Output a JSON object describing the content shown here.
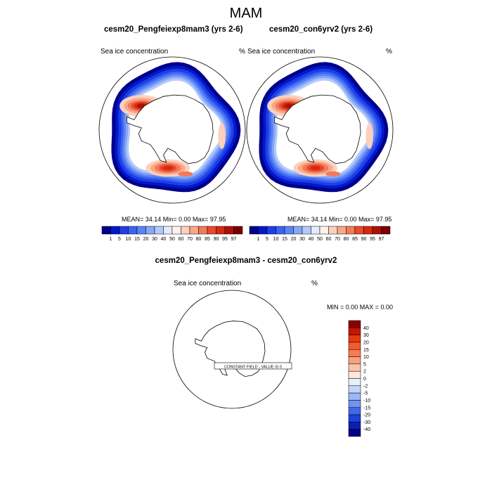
{
  "figure": {
    "title": "MAM",
    "left_panel": {
      "title": "cesm20_Pengfeiexp8mam3 (yrs 2-6)",
      "variable": "Sea ice concentration",
      "units": "%",
      "stats": "MEAN=  34.14  Min=   0.00  Max=  97.95"
    },
    "right_panel": {
      "title": "cesm20_con6yrv2 (yrs 2-6)",
      "variable": "Sea ice concentration",
      "units": "%",
      "stats": "MEAN=  34.14  Min=   0.00  Max=  97.95"
    },
    "diff_panel": {
      "title": "cesm20_Pengfeiexp8mam3 - cesm20_con6yrv2",
      "variable": "Sea ice concentration",
      "units": "%",
      "minmax": "MIN =   0.00 MAX =   0.00",
      "constant_note": "CONSTANT FIELD - VALUE IS 0"
    }
  },
  "chart_data": [
    {
      "type": "heatmap",
      "title": "cesm20_Pengfeiexp8mam3 (yrs 2-6)",
      "variable": "Sea ice concentration",
      "units": "%",
      "projection": "south polar stereographic",
      "mean": 34.14,
      "min": 0.0,
      "max": 97.95,
      "colorbar_levels": [
        "1",
        "5",
        "10",
        "15",
        "20",
        "30",
        "40",
        "50",
        "60",
        "70",
        "80",
        "85",
        "90",
        "95",
        "97"
      ],
      "colorbar_colors": [
        "#00008b",
        "#0019cc",
        "#1f3fe6",
        "#3b63f2",
        "#5b84f5",
        "#86a8f7",
        "#b4c9fa",
        "#e2ebff",
        "#fff2ea",
        "#fcd0bd",
        "#f8a98a",
        "#f27a5a",
        "#e84a2d",
        "#d42a10",
        "#ad1200",
        "#7a0000"
      ]
    },
    {
      "type": "heatmap",
      "title": "cesm20_con6yrv2 (yrs 2-6)",
      "variable": "Sea ice concentration",
      "units": "%",
      "projection": "south polar stereographic",
      "mean": 34.14,
      "min": 0.0,
      "max": 97.95,
      "colorbar_levels": [
        "1",
        "5",
        "10",
        "15",
        "20",
        "30",
        "40",
        "50",
        "60",
        "70",
        "80",
        "85",
        "90",
        "95",
        "97"
      ]
    },
    {
      "type": "heatmap",
      "title": "cesm20_Pengfeiexp8mam3 - cesm20_con6yrv2",
      "variable": "Sea ice concentration",
      "units": "%",
      "projection": "south polar stereographic",
      "min": 0.0,
      "max": 0.0,
      "constant_value": 0,
      "colorbar_levels": [
        "40",
        "30",
        "20",
        "15",
        "10",
        "5",
        "2",
        "0",
        "-2",
        "-5",
        "-10",
        "-15",
        "-20",
        "-30",
        "-40"
      ],
      "colorbar_colors": [
        "#8b0000",
        "#c81400",
        "#e63b12",
        "#f45a2a",
        "#f77b52",
        "#f9a07f",
        "#fbc4aa",
        "#fde6da",
        "#e8f0ff",
        "#c3d6fa",
        "#9bb8f6",
        "#7094f0",
        "#3f68ea",
        "#1f40d9",
        "#0a1fb4",
        "#000080"
      ]
    }
  ]
}
